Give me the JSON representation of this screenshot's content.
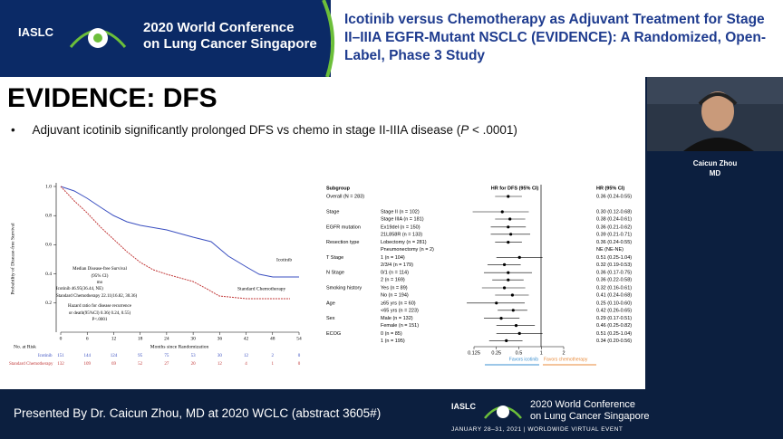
{
  "header": {
    "logo": {
      "org": "IASLC",
      "line1": "2020 World Conference",
      "line2": "on Lung Cancer Singapore"
    },
    "title": "Icotinib versus Chemotherapy as Adjuvant Treatment for Stage II–IIIA EGFR-Mutant NSCLC (EVIDENCE): A Randomized, Open-Label, Phase 3 Study"
  },
  "slide": {
    "title": "EVIDENCE: DFS",
    "bullet": {
      "before": "Adjuvant icotinib significantly prolonged DFS vs chemo in stage II-IIIA disease (",
      "italic": "P",
      "after": " < .0001)"
    }
  },
  "km": {
    "y_label": "Probability of Disease-free Survival",
    "x_label": "Months since Randomization",
    "xlim": [
      0,
      54
    ],
    "ylim": [
      0,
      1
    ],
    "xticks": [
      0,
      6,
      12,
      18,
      24,
      30,
      36,
      42,
      48,
      54
    ],
    "yticks": [
      {
        "value": 0.2,
        "label": "0.2"
      },
      {
        "value": 0.4,
        "label": "0.4"
      },
      {
        "value": 0.6,
        "label": "0.6"
      },
      {
        "value": 0.8,
        "label": "0.8"
      },
      {
        "value": 1,
        "label": "1.0"
      }
    ],
    "curve_labels": [
      "Icotinib",
      "Standard Chemotherapy"
    ],
    "legend_lines": [
      "Median Disease-free Survival",
      "(95% CI)",
      "mo",
      "Icotinib    46.95(36.44, NE)",
      "Standard Chemotherapy    22.11(16.82, 30.36)",
      "Hazard ratio for disease recurrence",
      "or death(95%CI) 0.36( 0.24, 0.55)",
      "P<.0001"
    ],
    "risk": {
      "title": "No. at Risk",
      "rows": [
        {
          "name": "Icotinib",
          "color": "#3a4fc0",
          "counts": [
            151,
            144,
            124,
            95,
            75,
            53,
            30,
            12,
            2,
            0
          ]
        },
        {
          "name": "Standard Chemotherapy",
          "color": "#c23a3a",
          "counts": [
            132,
            109,
            69,
            52,
            27,
            20,
            12,
            4,
            1,
            0
          ]
        }
      ]
    }
  },
  "forest": {
    "subgroup_header": "Subgroup",
    "plot_header": "HR for DFS (95% CI)",
    "hr_header": "HR (95% CI)",
    "xlim": [
      0.125,
      2
    ],
    "xticks": [
      {
        "value": 0.125,
        "label": "0.125"
      },
      {
        "value": 0.25,
        "label": "0.25"
      },
      {
        "value": 0.5,
        "label": "0.5"
      },
      1,
      2
    ],
    "log_scale": true,
    "favors_left": "Favors icotinib",
    "favors_right": "Favors chemotherapy",
    "left_color": "#3a8fd0",
    "right_color": "#e88a3a",
    "overall": {
      "label": "Overall (N = 283)",
      "hr": 0.36,
      "lo": 0.24,
      "hi": 0.55,
      "hr_label": "0.36 (0.24-0.55)"
    },
    "groups": [
      {
        "name": "Stage",
        "rows": [
          {
            "label": "Stage II (n = 102)",
            "hr": 0.3,
            "lo": 0.12,
            "hi": 0.68,
            "hr_label": "0.30 (0.12-0.68)"
          },
          {
            "label": "Stage IIIA (n = 181)",
            "hr": 0.38,
            "lo": 0.24,
            "hi": 0.61,
            "hr_label": "0.38 (0.24-0.61)"
          }
        ]
      },
      {
        "name": "EGFR mutation",
        "rows": [
          {
            "label": "Ex19del (n = 150)",
            "hr": 0.36,
            "lo": 0.21,
            "hi": 0.62,
            "hr_label": "0.36 (0.21-0.62)"
          },
          {
            "label": "21L858R (n = 133)",
            "hr": 0.39,
            "lo": 0.21,
            "hi": 0.71,
            "hr_label": "0.39 (0.21-0.71)"
          }
        ]
      },
      {
        "name": "Resection type",
        "rows": [
          {
            "label": "Lobectomy (n = 281)",
            "hr": 0.36,
            "lo": 0.24,
            "hi": 0.55,
            "hr_label": "0.36 (0.24-0.55)"
          },
          {
            "label": "Pneumonectomy (n = 2)",
            "hr": null,
            "lo": null,
            "hi": null,
            "hr_label": "NE (NE-NE)"
          }
        ]
      },
      {
        "name": "T Stage",
        "rows": [
          {
            "label": "1 (n = 104)",
            "hr": 0.51,
            "lo": 0.25,
            "hi": 1.04,
            "hr_label": "0.51 (0.25-1.04)"
          },
          {
            "label": "2/3/4 (n = 179)",
            "hr": 0.32,
            "lo": 0.19,
            "hi": 0.53,
            "hr_label": "0.32 (0.19-0.53)"
          }
        ]
      },
      {
        "name": "N Stage",
        "rows": [
          {
            "label": "0/1 (n = 114)",
            "hr": 0.36,
            "lo": 0.17,
            "hi": 0.75,
            "hr_label": "0.36 (0.17-0.75)"
          },
          {
            "label": "2 (n = 169)",
            "hr": 0.36,
            "lo": 0.22,
            "hi": 0.58,
            "hr_label": "0.36 (0.22-0.58)"
          }
        ]
      },
      {
        "name": "Smoking history",
        "rows": [
          {
            "label": "Yes (n = 89)",
            "hr": 0.32,
            "lo": 0.16,
            "hi": 0.61,
            "hr_label": "0.32 (0.16-0.61)"
          },
          {
            "label": "No (n = 194)",
            "hr": 0.41,
            "lo": 0.24,
            "hi": 0.68,
            "hr_label": "0.41 (0.24-0.68)"
          }
        ]
      },
      {
        "name": "Age",
        "rows": [
          {
            "label": "≥65 yrs (n = 60)",
            "hr": 0.25,
            "lo": 0.1,
            "hi": 0.6,
            "hr_label": "0.25 (0.10-0.60)"
          },
          {
            "label": "<65 yrs (n = 223)",
            "hr": 0.42,
            "lo": 0.26,
            "hi": 0.65,
            "hr_label": "0.42 (0.26-0.65)"
          }
        ]
      },
      {
        "name": "Sex",
        "rows": [
          {
            "label": "Male (n = 132)",
            "hr": 0.29,
            "lo": 0.17,
            "hi": 0.51,
            "hr_label": "0.29 (0.17-0.51)"
          },
          {
            "label": "Female (n = 151)",
            "hr": 0.46,
            "lo": 0.25,
            "hi": 0.82,
            "hr_label": "0.46 (0.25-0.82)"
          }
        ]
      },
      {
        "name": "ECOG",
        "rows": [
          {
            "label": "0 (n = 85)",
            "hr": 0.51,
            "lo": 0.25,
            "hi": 1.04,
            "hr_label": "0.51 (0.25-1.04)"
          },
          {
            "label": "1 (n = 195)",
            "hr": 0.34,
            "lo": 0.2,
            "hi": 0.56,
            "hr_label": "0.34 (0.20-0.56)"
          }
        ]
      }
    ]
  },
  "speaker": {
    "name": "Caicun Zhou",
    "degree": "MD"
  },
  "footer": {
    "presented": "Presented By Dr. Caicun Zhou, MD at 2020 WCLC (abstract 3605#)",
    "logo": {
      "org": "IASLC",
      "line1": "2020 World Conference",
      "line2": "on Lung Cancer Singapore",
      "date": "JANUARY 28–31, 2021 | WORLDWIDE VIRTUAL EVENT"
    }
  }
}
